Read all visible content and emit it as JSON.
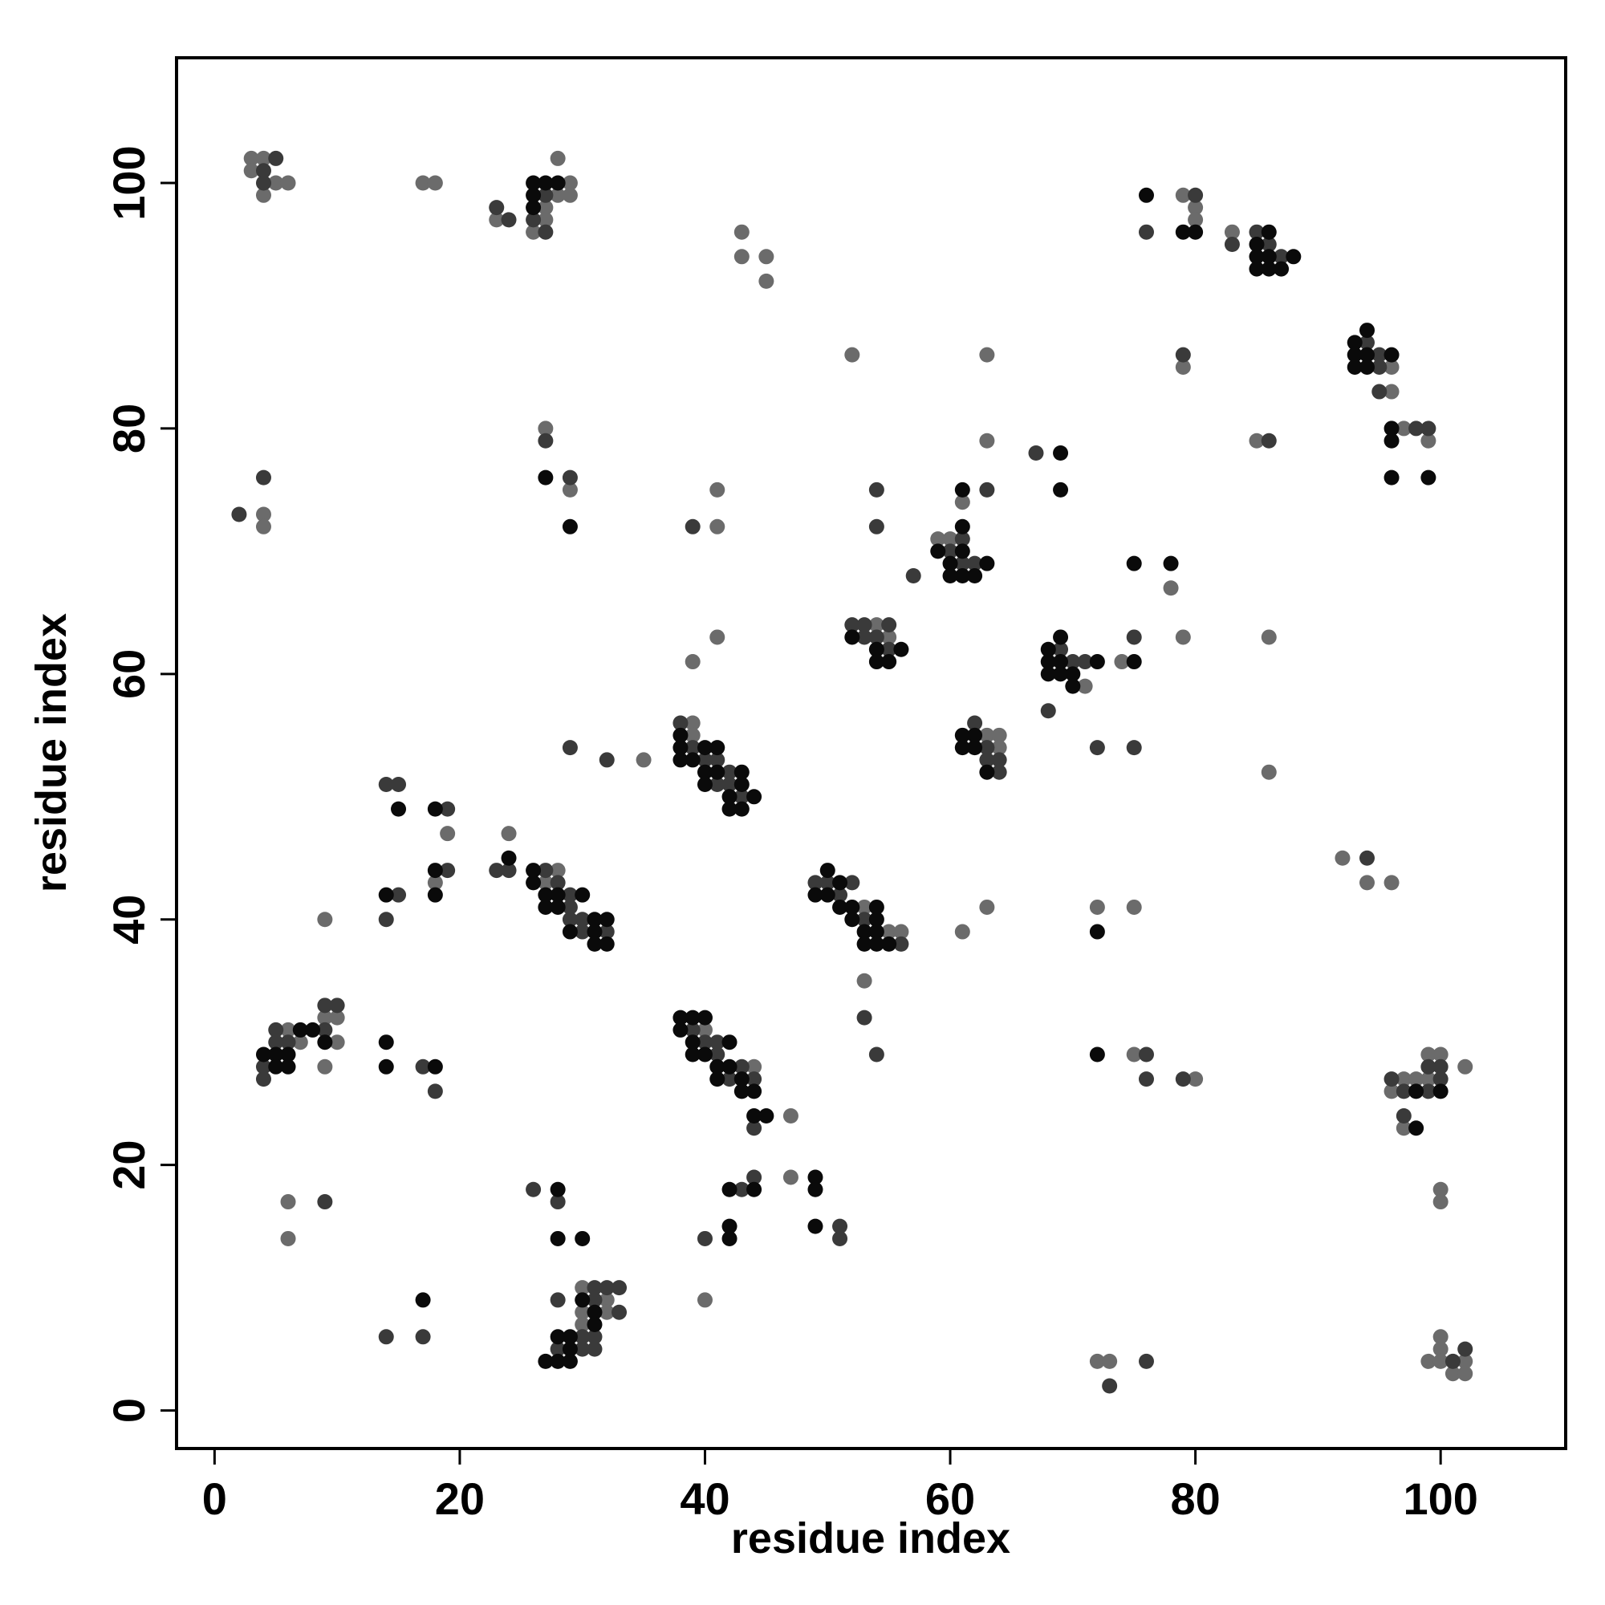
{
  "chart_data": {
    "type": "scatter",
    "xlabel": "residue index",
    "ylabel": "residue index",
    "xlim": [
      -3.1,
      110.2
    ],
    "ylim": [
      -3.1,
      110.2
    ],
    "xticks": [
      0,
      20,
      40,
      60,
      80,
      100
    ],
    "yticks": [
      0,
      20,
      40,
      60,
      80,
      100
    ],
    "series": [
      {
        "color": "#6b6b6b",
        "x": [
          3,
          4,
          3,
          5,
          6,
          4,
          17,
          18,
          23,
          26,
          27,
          27,
          28,
          28,
          29,
          29,
          43,
          43,
          45,
          45,
          79,
          80,
          80,
          83,
          52,
          63,
          96,
          96,
          79,
          97,
          99,
          85,
          4,
          4,
          27,
          29,
          41,
          41,
          61,
          63,
          59,
          60,
          78,
          79,
          86,
          54,
          55,
          39,
          41,
          71,
          74,
          63,
          64,
          64,
          86,
          39,
          39,
          35,
          19,
          18,
          9,
          24,
          27,
          28,
          53,
          55,
          56,
          53,
          61,
          63,
          72,
          75,
          92,
          94,
          96,
          6,
          7,
          9,
          10,
          10,
          9,
          40,
          44,
          47,
          75,
          80,
          96,
          97,
          97,
          98,
          99,
          99,
          100,
          102,
          6,
          6,
          47,
          40,
          30,
          30,
          30,
          32,
          32,
          72,
          73,
          99,
          100,
          100,
          100,
          101,
          102,
          102,
          100,
          100
        ],
        "y": [
          102,
          102,
          101,
          100,
          100,
          99,
          100,
          100,
          97,
          96,
          98,
          97,
          102,
          99,
          100,
          99,
          96,
          94,
          94,
          92,
          99,
          98,
          97,
          96,
          86,
          86,
          85,
          83,
          85,
          80,
          79,
          79,
          73,
          72,
          80,
          75,
          75,
          72,
          74,
          79,
          71,
          71,
          67,
          63,
          63,
          64,
          63,
          61,
          63,
          59,
          61,
          55,
          55,
          54,
          52,
          56,
          55,
          53,
          47,
          43,
          40,
          47,
          43,
          44,
          41,
          39,
          39,
          35,
          39,
          41,
          41,
          41,
          45,
          43,
          43,
          31,
          30,
          32,
          32,
          30,
          28,
          31,
          28,
          24,
          29,
          27,
          26,
          27,
          23,
          27,
          29,
          27,
          29,
          28,
          17,
          14,
          19,
          9,
          10,
          8,
          7,
          9,
          8,
          4,
          4,
          4,
          6,
          5,
          4,
          3,
          4,
          3,
          18,
          17
        ]
      },
      {
        "color": "#3a3a3a",
        "x": [
          5,
          4,
          4,
          23,
          24,
          26,
          27,
          27,
          76,
          80,
          83,
          85,
          86,
          87,
          94,
          95,
          95,
          95,
          79,
          98,
          99,
          86,
          2,
          4,
          27,
          29,
          39,
          54,
          54,
          63,
          67,
          60,
          61,
          61,
          62,
          57,
          52,
          53,
          53,
          54,
          55,
          55,
          69,
          70,
          71,
          68,
          75,
          62,
          63,
          63,
          64,
          64,
          72,
          75,
          38,
          39,
          40,
          41,
          41,
          42,
          42,
          43,
          29,
          32,
          14,
          15,
          19,
          19,
          15,
          14,
          23,
          24,
          27,
          28,
          29,
          29,
          29,
          30,
          30,
          32,
          49,
          50,
          51,
          52,
          53,
          56,
          53,
          54,
          94,
          4,
          4,
          5,
          5,
          6,
          9,
          9,
          10,
          17,
          18,
          39,
          40,
          41,
          41,
          42,
          43,
          44,
          44,
          76,
          76,
          79,
          96,
          97,
          97,
          99,
          99,
          100,
          100,
          9,
          26,
          28,
          40,
          43,
          44,
          51,
          51,
          14,
          17,
          28,
          28,
          30,
          30,
          31,
          31,
          31,
          31,
          32,
          33,
          33,
          73,
          76,
          101,
          102
        ],
        "y": [
          102,
          101,
          100,
          98,
          97,
          97,
          99,
          96,
          96,
          99,
          95,
          96,
          95,
          94,
          87,
          86,
          85,
          83,
          86,
          80,
          80,
          79,
          73,
          76,
          79,
          76,
          72,
          75,
          72,
          75,
          78,
          70,
          71,
          69,
          69,
          68,
          64,
          64,
          63,
          63,
          64,
          62,
          62,
          61,
          61,
          57,
          63,
          56,
          54,
          53,
          53,
          52,
          54,
          54,
          56,
          54,
          53,
          53,
          51,
          52,
          51,
          50,
          54,
          53,
          51,
          51,
          49,
          44,
          42,
          40,
          44,
          44,
          44,
          43,
          42,
          41,
          40,
          40,
          39,
          39,
          43,
          43,
          42,
          43,
          40,
          38,
          32,
          29,
          45,
          28,
          27,
          31,
          30,
          30,
          33,
          31,
          33,
          28,
          26,
          31,
          30,
          30,
          29,
          27,
          28,
          27,
          23,
          29,
          27,
          27,
          27,
          26,
          24,
          28,
          26,
          28,
          27,
          17,
          18,
          17,
          14,
          18,
          19,
          15,
          14,
          6,
          6,
          9,
          5,
          6,
          5,
          10,
          9,
          6,
          5,
          10,
          10,
          8,
          2,
          4,
          4,
          5
        ]
      },
      {
        "color": "#0a0a0a",
        "x": [
          26,
          26,
          26,
          27,
          28,
          76,
          79,
          80,
          86,
          85,
          85,
          85,
          86,
          86,
          87,
          88,
          93,
          93,
          93,
          94,
          94,
          94,
          96,
          96,
          96,
          96,
          99,
          27,
          29,
          61,
          69,
          69,
          59,
          60,
          60,
          61,
          61,
          61,
          62,
          63,
          75,
          78,
          52,
          54,
          54,
          55,
          56,
          68,
          68,
          68,
          69,
          69,
          69,
          70,
          70,
          72,
          75,
          61,
          61,
          62,
          62,
          63,
          38,
          38,
          38,
          39,
          40,
          40,
          40,
          41,
          41,
          42,
          42,
          43,
          43,
          43,
          44,
          15,
          18,
          18,
          18,
          14,
          24,
          26,
          26,
          27,
          27,
          28,
          28,
          29,
          30,
          31,
          31,
          31,
          32,
          32,
          49,
          50,
          50,
          51,
          51,
          52,
          52,
          53,
          53,
          54,
          54,
          54,
          54,
          55,
          72,
          4,
          5,
          5,
          6,
          6,
          7,
          8,
          9,
          14,
          14,
          18,
          38,
          38,
          39,
          39,
          39,
          40,
          40,
          41,
          41,
          42,
          42,
          43,
          43,
          44,
          44,
          45,
          72,
          98,
          98,
          100,
          28,
          28,
          30,
          42,
          42,
          42,
          44,
          49,
          49,
          49,
          17,
          27,
          28,
          28,
          29,
          29,
          29,
          30,
          31,
          31
        ],
        "y": [
          100,
          99,
          98,
          100,
          100,
          99,
          96,
          96,
          96,
          95,
          94,
          93,
          94,
          93,
          93,
          94,
          87,
          86,
          85,
          88,
          86,
          85,
          86,
          80,
          79,
          76,
          76,
          76,
          72,
          75,
          78,
          75,
          70,
          69,
          68,
          72,
          70,
          68,
          68,
          69,
          69,
          69,
          63,
          62,
          61,
          61,
          62,
          62,
          61,
          60,
          63,
          61,
          60,
          60,
          59,
          61,
          61,
          55,
          54,
          55,
          54,
          52,
          55,
          54,
          53,
          53,
          54,
          52,
          51,
          54,
          52,
          50,
          49,
          52,
          51,
          49,
          50,
          49,
          49,
          44,
          42,
          42,
          45,
          44,
          43,
          42,
          41,
          42,
          41,
          39,
          42,
          40,
          39,
          38,
          40,
          38,
          42,
          44,
          42,
          43,
          41,
          41,
          40,
          39,
          38,
          41,
          40,
          39,
          38,
          38,
          39,
          29,
          29,
          28,
          29,
          28,
          31,
          31,
          30,
          30,
          28,
          28,
          32,
          31,
          32,
          30,
          29,
          32,
          29,
          28,
          27,
          30,
          28,
          27,
          26,
          26,
          24,
          24,
          29,
          26,
          23,
          26,
          18,
          14,
          14,
          18,
          15,
          14,
          18,
          19,
          18,
          15,
          9,
          4,
          6,
          4,
          6,
          5,
          4,
          9,
          8,
          7
        ]
      }
    ]
  }
}
